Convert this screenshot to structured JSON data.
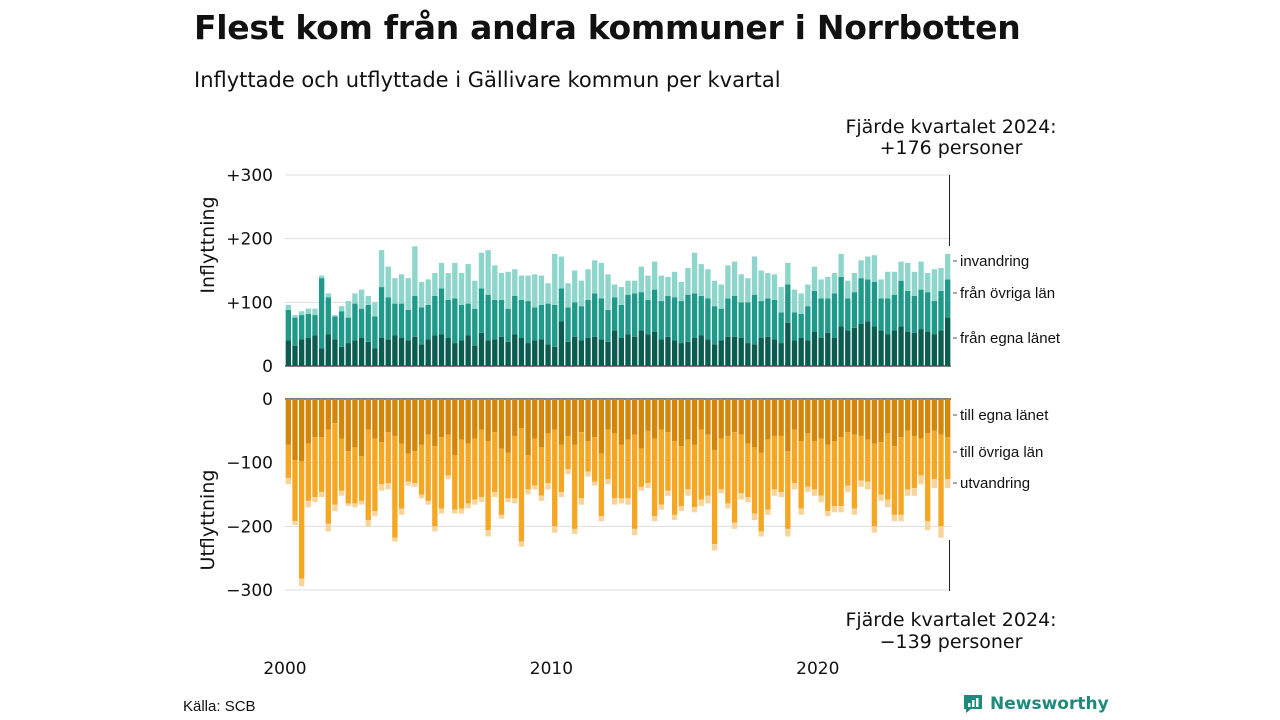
{
  "header": {
    "title": "Flest kom från andra kommuner i Norrbotten",
    "subtitle": "Inflyttade och utflyttade i Gällivare kommun per kvartal"
  },
  "footer": {
    "source": "Källa: SCB",
    "brand": "Newsworthy"
  },
  "annotations": {
    "top_line1": "Fjärde kvartalet 2024:",
    "top_line2": "+176 personer",
    "bottom_line1": "Fjärde kvartalet 2024:",
    "bottom_line2": "−139 personer"
  },
  "colors": {
    "fran_egna_lanet": "#0c5c52",
    "fran_ovriga_lan": "#1f9a8a",
    "invandring": "#8ed6cc",
    "till_egna_lanet": "#d4860b",
    "till_ovriga_lan": "#f5a623",
    "utvandring": "#f9d49a",
    "brand": "#1f8a7c"
  },
  "chart_data": {
    "type": "bar",
    "stacked": true,
    "x_start": "2000 Q1",
    "x_end": "2024 Q4",
    "x_tick_labels": [
      "2000",
      "2010",
      "2020"
    ],
    "panels": [
      {
        "name": "Inflyttning",
        "ylabel": "Inflyttning",
        "ylim": [
          0,
          300
        ],
        "y_tick_labels": [
          "0",
          "+100",
          "+200",
          "+300"
        ],
        "series": [
          {
            "name": "från egna länet",
            "values": [
              40,
              32,
              42,
              44,
              48,
              28,
              50,
              42,
              30,
              36,
              40,
              44,
              38,
              28,
              44,
              42,
              48,
              44,
              40,
              46,
              34,
              42,
              48,
              50,
              44,
              36,
              40,
              48,
              32,
              52,
              40,
              42,
              46,
              38,
              50,
              44,
              36,
              40,
              42,
              34,
              30,
              70,
              38,
              46,
              40,
              44,
              46,
              42,
              38,
              56,
              44,
              50,
              46,
              56,
              50,
              54,
              42,
              46,
              40,
              36,
              38,
              44,
              48,
              42,
              34,
              40,
              46,
              46,
              44,
              36,
              34,
              44,
              46,
              42,
              36,
              68,
              40,
              44,
              40,
              54,
              44,
              52,
              44,
              62,
              56,
              60,
              66,
              70,
              62,
              56,
              50,
              56,
              62,
              54,
              52,
              58,
              54,
              50,
              56,
              76
            ]
          },
          {
            "name": "från övriga län",
            "values": [
              48,
              44,
              38,
              38,
              32,
              110,
              58,
              36,
              56,
              40,
              58,
              46,
              58,
              50,
              80,
              66,
              50,
              54,
              48,
              64,
              58,
              54,
              62,
              72,
              60,
              70,
              56,
              50,
              58,
              70,
              72,
              62,
              58,
              52,
              60,
              60,
              66,
              52,
              54,
              64,
              66,
              52,
              54,
              54,
              54,
              60,
              68,
              64,
              50,
              52,
              52,
              62,
              68,
              60,
              54,
              66,
              60,
              64,
              68,
              66,
              74,
              70,
              62,
              64,
              60,
              50,
              60,
              64,
              56,
              64,
              78,
              58,
              60,
              62,
              48,
              60,
              44,
              38,
              54,
              64,
              62,
              54,
              70,
              78,
              50,
              56,
              72,
              66,
              70,
              50,
              56,
              56,
              72,
              64,
              58,
              62,
              62,
              52,
              62,
              60
            ]
          },
          {
            "name": "invandring",
            "values": [
              8,
              4,
              6,
              8,
              10,
              4,
              6,
              2,
              8,
              26,
              16,
              30,
              14,
              22,
              58,
              48,
              40,
              46,
              50,
              78,
              40,
              40,
              36,
              40,
              42,
              56,
              50,
              62,
              44,
              56,
              70,
              54,
              42,
              58,
              42,
              38,
              40,
              52,
              46,
              32,
              80,
              50,
              38,
              50,
              40,
              48,
              52,
              56,
              56,
              20,
              28,
              22,
              20,
              40,
              38,
              44,
              40,
              30,
              40,
              30,
              42,
              64,
              50,
              46,
              40,
              38,
              52,
              54,
              44,
              38,
              60,
              48,
              40,
              40,
              40,
              34,
              36,
              32,
              34,
              38,
              30,
              34,
              32,
              36,
              28,
              30,
              28,
              36,
              42,
              30,
              42,
              36,
              30,
              44,
              38,
              44,
              30,
              50,
              36,
              40
            ]
          }
        ]
      },
      {
        "name": "Utflyttning",
        "ylabel": "Utflyttning",
        "ylim": [
          -300,
          0
        ],
        "y_tick_labels": [
          "0",
          "−100",
          "−200",
          "−300"
        ],
        "series": [
          {
            "name": "till egna länet",
            "values": [
              -72,
              -96,
              -98,
              -70,
              -60,
              -60,
              -48,
              -38,
              -62,
              -82,
              -76,
              -90,
              -48,
              -62,
              -68,
              -52,
              -58,
              -70,
              -86,
              -82,
              -72,
              -56,
              -74,
              -60,
              -56,
              -88,
              -64,
              -70,
              -62,
              -48,
              -66,
              -52,
              -78,
              -84,
              -58,
              -46,
              -88,
              -62,
              -76,
              -54,
              -48,
              -72,
              -58,
              -72,
              -52,
              -66,
              -60,
              -86,
              -48,
              -54,
              -72,
              -64,
              -56,
              -78,
              -50,
              -62,
              -48,
              -52,
              -66,
              -74,
              -64,
              -72,
              -48,
              -56,
              -80,
              -62,
              -58,
              -52,
              -56,
              -70,
              -76,
              -84,
              -64,
              -58,
              -58,
              -82,
              -48,
              -66,
              -54,
              -66,
              -62,
              -72,
              -66,
              -60,
              -52,
              -56,
              -58,
              -64,
              -70,
              -68,
              -54,
              -74,
              -60,
              -50,
              -58,
              -62,
              -54,
              -50,
              -56,
              -60
            ]
          },
          {
            "name": "till övriga län",
            "values": [
              -52,
              -96,
              -184,
              -90,
              -94,
              -86,
              -148,
              -128,
              -82,
              -82,
              -88,
              -70,
              -142,
              -114,
              -66,
              -80,
              -160,
              -102,
              -44,
              -50,
              -78,
              -104,
              -126,
              -112,
              -64,
              -86,
              -108,
              -94,
              -96,
              -106,
              -140,
              -94,
              -104,
              -72,
              -98,
              -178,
              -54,
              -74,
              -76,
              -78,
              -152,
              -74,
              -52,
              -132,
              -104,
              -48,
              -70,
              -98,
              -78,
              -102,
              -84,
              -92,
              -148,
              -60,
              -82,
              -122,
              -118,
              -92,
              -116,
              -94,
              -78,
              -98,
              -110,
              -96,
              -148,
              -80,
              -106,
              -142,
              -92,
              -84,
              -104,
              -124,
              -110,
              -84,
              -88,
              -122,
              -84,
              -106,
              -84,
              -76,
              -90,
              -104,
              -102,
              -108,
              -84,
              -116,
              -70,
              -66,
              -130,
              -82,
              -104,
              -108,
              -122,
              -92,
              -82,
              -58,
              -138,
              -76,
              -144,
              -66
            ]
          },
          {
            "name": "utvandring",
            "values": [
              -10,
              -6,
              -12,
              -10,
              -8,
              -8,
              -12,
              -10,
              -8,
              -4,
              -6,
              -6,
              -10,
              -8,
              -10,
              -10,
              -6,
              -10,
              -6,
              -6,
              -6,
              -6,
              -8,
              -8,
              -6,
              -6,
              -8,
              -8,
              -8,
              -8,
              -10,
              -8,
              -6,
              -6,
              -8,
              -8,
              -8,
              -6,
              -8,
              -10,
              -10,
              -8,
              -8,
              -8,
              -10,
              -8,
              -6,
              -8,
              -8,
              -10,
              -8,
              -10,
              -10,
              -6,
              -8,
              -8,
              -8,
              -8,
              -8,
              -8,
              -10,
              -8,
              -10,
              -12,
              -10,
              -6,
              -8,
              -10,
              -10,
              -8,
              -10,
              -8,
              -8,
              -10,
              -8,
              -12,
              -10,
              -10,
              -8,
              -10,
              -10,
              -8,
              -10,
              -10,
              -10,
              -10,
              -10,
              -12,
              -10,
              -10,
              -12,
              -10,
              -10,
              -10,
              -12,
              -14,
              -14,
              -14,
              -18,
              -14
            ]
          }
        ]
      }
    ],
    "legend_placement": "right"
  }
}
